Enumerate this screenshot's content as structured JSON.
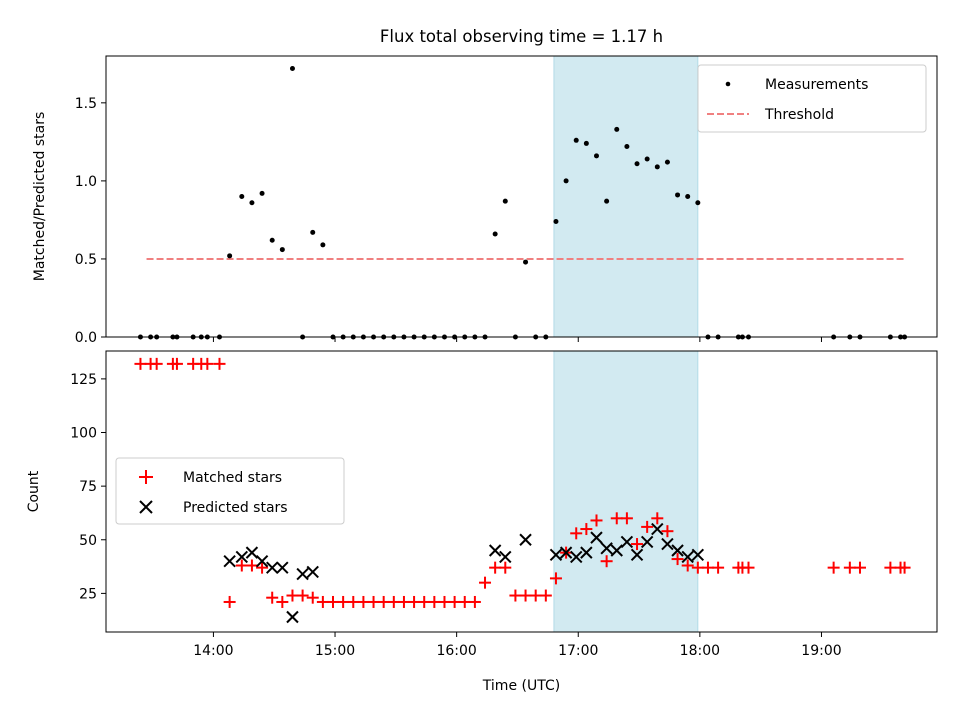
{
  "chart_data": [
    {
      "type": "scatter",
      "title": "Flux total observing time = 1.17 h",
      "xlabel": "",
      "ylabel": "Matched/Predicted stars",
      "xlim": [
        "13:07",
        "19:57"
      ],
      "ylim": [
        0,
        1.8
      ],
      "yticks": [
        "0.0",
        "0.5",
        "1.0",
        "1.5"
      ],
      "grid": false,
      "legend_position": "top-right",
      "highlight_span": {
        "x_start": "16:48",
        "x_end": "17:59",
        "color": "#add8e6"
      },
      "series": [
        {
          "name": "Measurements",
          "color": "#000000",
          "marker": "dot",
          "x": [
            "13:24",
            "13:29",
            "13:32",
            "13:40",
            "13:42",
            "13:50",
            "13:54",
            "13:57",
            "14:03",
            "14:08",
            "14:14",
            "14:19",
            "14:24",
            "14:29",
            "14:34",
            "14:39",
            "14:44",
            "14:49",
            "14:54",
            "14:59",
            "15:04",
            "15:09",
            "15:14",
            "15:19",
            "15:24",
            "15:29",
            "15:34",
            "15:39",
            "15:44",
            "15:49",
            "15:54",
            "15:59",
            "16:04",
            "16:09",
            "16:14",
            "16:19",
            "16:24",
            "16:29",
            "16:34",
            "16:39",
            "16:44",
            "16:49",
            "16:54",
            "16:59",
            "17:04",
            "17:09",
            "17:14",
            "17:19",
            "17:24",
            "17:29",
            "17:34",
            "17:39",
            "17:44",
            "17:49",
            "17:54",
            "17:59",
            "18:04",
            "18:09",
            "18:19",
            "18:21",
            "18:24",
            "19:06",
            "19:14",
            "19:19",
            "19:34",
            "19:39",
            "19:41"
          ],
          "y": [
            0,
            0,
            0,
            0,
            0,
            0,
            0,
            0,
            0,
            0.52,
            0.9,
            0.86,
            0.92,
            0.62,
            0.56,
            1.72,
            0,
            0.67,
            0.59,
            0,
            0,
            0,
            0,
            0,
            0,
            0,
            0,
            0,
            0,
            0,
            0,
            0,
            0,
            0,
            0,
            0.66,
            0.87,
            0,
            0.48,
            0,
            0,
            0.74,
            1.0,
            1.26,
            1.24,
            1.16,
            0.87,
            1.33,
            1.22,
            1.11,
            1.14,
            1.09,
            1.12,
            0.91,
            0.9,
            0.86,
            0,
            0,
            0,
            0,
            0,
            0,
            0,
            0,
            0,
            0,
            0
          ]
        },
        {
          "name": "Threshold",
          "color": "#f08080",
          "style": "dashed",
          "x": [
            "13:27",
            "19:41"
          ],
          "y": [
            0.5,
            0.5
          ]
        }
      ]
    },
    {
      "type": "scatter",
      "title": "",
      "xlabel": "Time (UTC)",
      "ylabel": "Count",
      "xlim": [
        "13:07",
        "19:57"
      ],
      "ylim": [
        7,
        138
      ],
      "yticks": [
        "25",
        "50",
        "75",
        "100",
        "125"
      ],
      "xticks": [
        "14:00",
        "15:00",
        "16:00",
        "17:00",
        "18:00",
        "19:00"
      ],
      "grid": false,
      "legend_position": "center-left",
      "highlight_span": {
        "x_start": "16:48",
        "x_end": "17:59",
        "color": "#add8e6"
      },
      "series": [
        {
          "name": "Matched stars",
          "color": "#ff0000",
          "marker": "plus",
          "x": [
            "13:24",
            "13:29",
            "13:32",
            "13:40",
            "13:42",
            "13:50",
            "13:54",
            "13:57",
            "14:03",
            "14:08",
            "14:14",
            "14:19",
            "14:24",
            "14:29",
            "14:34",
            "14:39",
            "14:44",
            "14:49",
            "14:54",
            "14:59",
            "15:04",
            "15:09",
            "15:14",
            "15:19",
            "15:24",
            "15:29",
            "15:34",
            "15:39",
            "15:44",
            "15:49",
            "15:54",
            "15:59",
            "16:04",
            "16:09",
            "16:14",
            "16:19",
            "16:24",
            "16:29",
            "16:34",
            "16:39",
            "16:44",
            "16:49",
            "16:54",
            "16:59",
            "17:04",
            "17:09",
            "17:14",
            "17:19",
            "17:24",
            "17:29",
            "17:34",
            "17:39",
            "17:44",
            "17:49",
            "17:54",
            "17:59",
            "18:04",
            "18:09",
            "18:19",
            "18:21",
            "18:24",
            "19:06",
            "19:14",
            "19:19",
            "19:34",
            "19:39",
            "19:41"
          ],
          "y": [
            132,
            132,
            132,
            132,
            132,
            132,
            132,
            132,
            132,
            21,
            38,
            38,
            37,
            23,
            21,
            24,
            24,
            23,
            21,
            21,
            21,
            21,
            21,
            21,
            21,
            21,
            21,
            21,
            21,
            21,
            21,
            21,
            21,
            21,
            30,
            37,
            37,
            24,
            24,
            24,
            24,
            32,
            44,
            53,
            55,
            59,
            40,
            60,
            60,
            48,
            56,
            60,
            54,
            41,
            38,
            37,
            37,
            37,
            37,
            37,
            37,
            37,
            37,
            37,
            37,
            37,
            37
          ]
        },
        {
          "name": "Predicted stars",
          "color": "#000000",
          "marker": "x",
          "x": [
            "14:08",
            "14:14",
            "14:19",
            "14:24",
            "14:29",
            "14:34",
            "14:39",
            "14:44",
            "14:49",
            "16:19",
            "16:24",
            "16:34",
            "16:49",
            "16:54",
            "16:59",
            "17:04",
            "17:09",
            "17:14",
            "17:19",
            "17:24",
            "17:29",
            "17:34",
            "17:39",
            "17:44",
            "17:49",
            "17:54",
            "17:59"
          ],
          "y": [
            40,
            42,
            44,
            40,
            37,
            37,
            14,
            34,
            35,
            45,
            42,
            50,
            43,
            44,
            42,
            44,
            51,
            46,
            45,
            49,
            43,
            49,
            55,
            48,
            45,
            42,
            43
          ]
        }
      ]
    }
  ]
}
